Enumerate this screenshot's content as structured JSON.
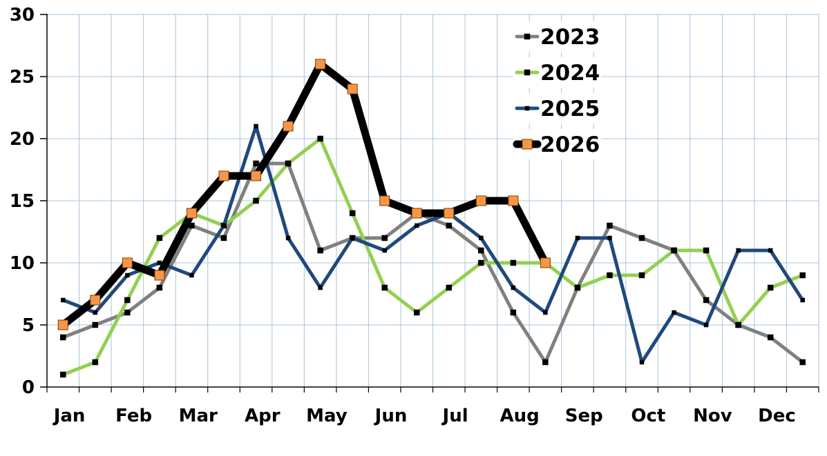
{
  "chart_data": {
    "type": "line",
    "title": "",
    "xlabel": "",
    "ylabel": "",
    "ylim": [
      0,
      30
    ],
    "y_ticks": [
      "0",
      "5",
      "10",
      "15",
      "20",
      "25",
      "30"
    ],
    "month_labels": [
      "Jan",
      "Feb",
      "Mar",
      "Apr",
      "May",
      "Jun",
      "Jul",
      "Aug",
      "Sep",
      "Oct",
      "Nov",
      "Dec"
    ],
    "grid": true,
    "legend_position": "top-right",
    "series": [
      {
        "name": "2023",
        "color": "#808080",
        "marker_color": "#000000",
        "values": [
          4,
          5,
          6,
          8,
          13,
          12,
          18,
          18,
          11,
          12,
          12,
          14,
          13,
          11,
          6,
          2,
          8,
          13,
          12,
          11,
          7,
          5,
          4,
          2
        ]
      },
      {
        "name": "2024",
        "color": "#92d050",
        "marker_color": "#000000",
        "values": [
          1,
          2,
          7,
          12,
          14,
          13,
          15,
          18,
          20,
          14,
          8,
          6,
          8,
          10,
          10,
          10,
          8,
          9,
          9,
          11,
          11,
          5,
          8,
          9
        ]
      },
      {
        "name": "2025",
        "color": "#1f497d",
        "marker_color": "#000000",
        "values": [
          7,
          6,
          9,
          10,
          9,
          13,
          21,
          12,
          8,
          12,
          11,
          13,
          14,
          12,
          8,
          6,
          12,
          12,
          2,
          6,
          5,
          11,
          11,
          7
        ]
      },
      {
        "name": "2026",
        "color": "#000000",
        "marker_color": "#f79646",
        "values": [
          5,
          7,
          10,
          9,
          14,
          17,
          17,
          21,
          26,
          24,
          15,
          14,
          14,
          15,
          15,
          10
        ]
      }
    ]
  }
}
